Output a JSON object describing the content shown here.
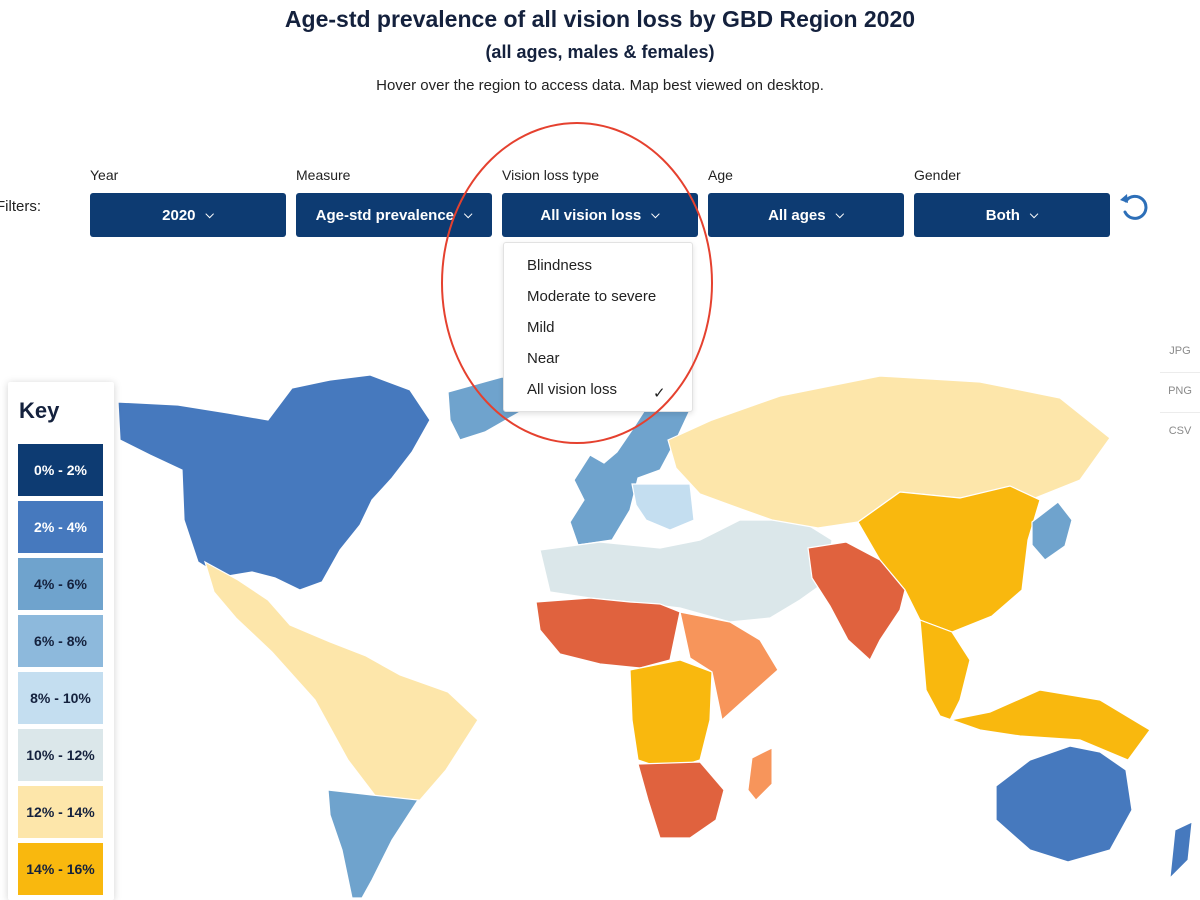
{
  "header": {
    "title": "Age-std prevalence of all vision loss by GBD Region 2020",
    "subtitle": "(all ages, males & females)",
    "hint": "Hover over the region to access data. Map best viewed on desktop."
  },
  "filters": {
    "label": "Filters:",
    "items": [
      {
        "label": "Year",
        "value": "2020"
      },
      {
        "label": "Measure",
        "value": "Age-std prevalence"
      },
      {
        "label": "Vision loss type",
        "value": "All vision loss"
      },
      {
        "label": "Age",
        "value": "All ages"
      },
      {
        "label": "Gender",
        "value": "Both"
      }
    ],
    "reset_icon": "reset-icon"
  },
  "vision_menu": {
    "options": [
      "Blindness",
      "Moderate to severe",
      "Mild",
      "Near",
      "All vision loss"
    ],
    "selected": "All vision loss",
    "highlight_color": "#e5412f"
  },
  "export": [
    "JPG",
    "PNG",
    "CSV"
  ],
  "key": {
    "title": "Key",
    "bins": [
      {
        "label": "0% - 2%",
        "color": "#0d3b72",
        "text_color": "#ffffff"
      },
      {
        "label": "2% - 4%",
        "color": "#4679be",
        "text_color": "#ffffff"
      },
      {
        "label": "4% - 6%",
        "color": "#6fa3cd",
        "text_color": "#14213d"
      },
      {
        "label": "6% - 8%",
        "color": "#8db9dc",
        "text_color": "#14213d"
      },
      {
        "label": "8% - 10%",
        "color": "#c4def0",
        "text_color": "#14213d"
      },
      {
        "label": "10% - 12%",
        "color": "#dbe7ea",
        "text_color": "#14213d"
      },
      {
        "label": "12% - 14%",
        "color": "#fde6aa",
        "text_color": "#14213d"
      },
      {
        "label": "14% - 16%",
        "color": "#f9b80e",
        "text_color": "#14213d"
      }
    ],
    "extra_colors": {
      "16% - 18%": "#f7955b",
      "18% - 20%": "#e0623e"
    }
  },
  "map": {
    "regions": [
      {
        "region": "North America (US & Canada)",
        "bin": "2% - 4%"
      },
      {
        "region": "Greenland",
        "bin": "4% - 6%"
      },
      {
        "region": "Western Europe",
        "bin": "4% - 6%"
      },
      {
        "region": "Central Europe",
        "bin": "8% - 10%"
      },
      {
        "region": "North Africa & Middle East",
        "bin": "10% - 12%"
      },
      {
        "region": "Central Asia & Eastern Europe",
        "bin": "12% - 14%"
      },
      {
        "region": "Latin America",
        "bin": "12% - 14%"
      },
      {
        "region": "Southern Latin America",
        "bin": "4% - 6%"
      },
      {
        "region": "China & East Asia",
        "bin": "14% - 16%"
      },
      {
        "region": "Southeast Asia",
        "bin": "14% - 16%"
      },
      {
        "region": "Japan & Korea",
        "bin": "4% - 6%"
      },
      {
        "region": "South Asia",
        "bin": "18% - 20%"
      },
      {
        "region": "West Africa",
        "bin": "18% - 20%"
      },
      {
        "region": "Central Africa",
        "bin": "14% - 16%"
      },
      {
        "region": "East Africa",
        "bin": "16% - 18%"
      },
      {
        "region": "Southern Africa",
        "bin": "18% - 20%"
      },
      {
        "region": "Australia & New Zealand",
        "bin": "2% - 4%"
      }
    ]
  }
}
